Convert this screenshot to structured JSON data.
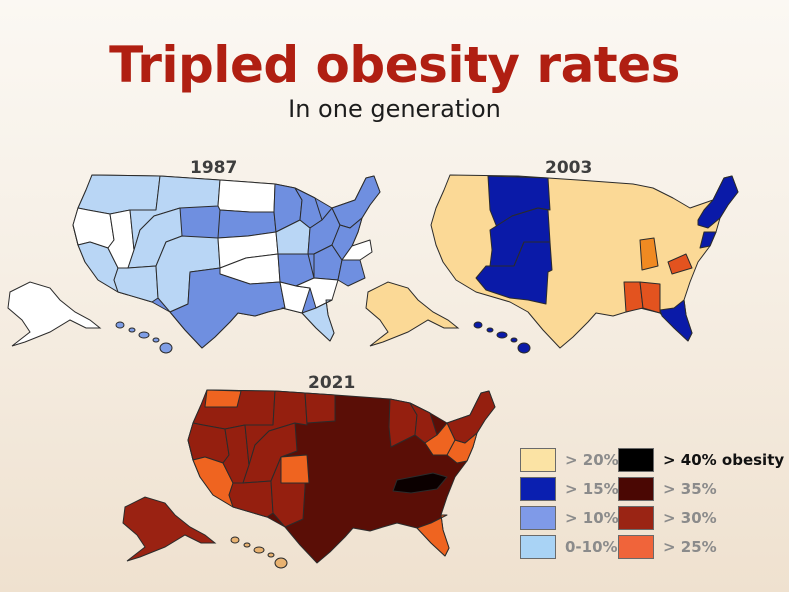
{
  "title": "Tripled obesity rates",
  "subtitle": "In one generation",
  "maps": [
    {
      "year": "1987",
      "colors": {
        "main": "#6f8fe0",
        "light": "#b9d6f5",
        "white": "#ffffff",
        "ak": "#ffffff",
        "hi": "#7f9ee6"
      }
    },
    {
      "year": "2003",
      "colors": {
        "main": "#fbd996",
        "dark": "#0a1aa8",
        "orange": "#f08a22",
        "red": "#e3531f",
        "ak": "#fbd996",
        "hi": "#0a1aa8"
      }
    },
    {
      "year": "2021",
      "colors": {
        "main": "#5a0e06",
        "r30": "#951f0f",
        "r25": "#ef6420",
        "black": "#0b0000",
        "ak": "#9a2212",
        "hi": "#e8b271"
      }
    }
  ],
  "legend": [
    {
      "label": "> 20%",
      "color": "#fbe3a4",
      "dark_text": false
    },
    {
      "label": "> 15%",
      "color": "#0a1fb0",
      "dark_text": false
    },
    {
      "label": "> 10%",
      "color": "#7f9ae8",
      "dark_text": false
    },
    {
      "label": "0-10%",
      "color": "#a9d3f5",
      "dark_text": false
    },
    {
      "label": "> 40% obesity",
      "color": "#000000",
      "dark_text": true
    },
    {
      "label": "> 35%",
      "color": "#4a0703",
      "dark_text": false
    },
    {
      "label": "> 30%",
      "color": "#9a2414",
      "dark_text": false
    },
    {
      "label": "> 25%",
      "color": "#f0643a",
      "dark_text": false
    }
  ]
}
